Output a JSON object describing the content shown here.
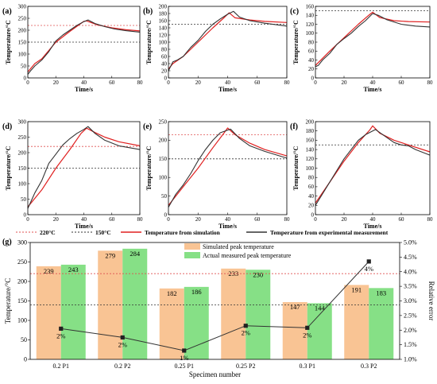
{
  "chart_data": [
    {
      "panel": "(a)",
      "type": "line",
      "xlabel": "Time/s",
      "ylabel": "Temperature/°C",
      "xlim": [
        0,
        80
      ],
      "ylim": [
        0,
        300
      ],
      "xticks": [
        "0",
        "20",
        "40",
        "60",
        "80"
      ],
      "yticks": [
        "0",
        "50",
        "100",
        "150",
        "200",
        "250",
        "300"
      ],
      "ref_lines": [
        220,
        150
      ],
      "series": [
        {
          "name": "Temperature from simulation",
          "color": "#e02020",
          "points": [
            [
              0,
              25
            ],
            [
              5,
              60
            ],
            [
              10,
              80
            ],
            [
              20,
              150
            ],
            [
              30,
              195
            ],
            [
              40,
              237
            ],
            [
              42,
              239
            ],
            [
              50,
              222
            ],
            [
              60,
              210
            ],
            [
              70,
              202
            ],
            [
              80,
              197
            ]
          ]
        },
        {
          "name": "Temperature from experimental measurement",
          "color": "#333333",
          "points": [
            [
              0,
              15
            ],
            [
              2,
              30
            ],
            [
              5,
              50
            ],
            [
              10,
              75
            ],
            [
              15,
              110
            ],
            [
              20,
              155
            ],
            [
              25,
              180
            ],
            [
              30,
              200
            ],
            [
              35,
              220
            ],
            [
              40,
              236
            ],
            [
              43,
              243
            ],
            [
              48,
              228
            ],
            [
              55,
              215
            ],
            [
              62,
              205
            ],
            [
              70,
              198
            ],
            [
              80,
              192
            ]
          ]
        }
      ]
    },
    {
      "panel": "(b)",
      "type": "line",
      "xlabel": "Time/s",
      "ylabel": "Temperature/°C",
      "xlim": [
        0,
        80
      ],
      "ylim": [
        0,
        200
      ],
      "xticks": [
        "0",
        "20",
        "40",
        "60",
        "80"
      ],
      "yticks": [
        "0",
        "20",
        "40",
        "60",
        "80",
        "100",
        "120",
        "140",
        "160",
        "180",
        "200"
      ],
      "ref_lines": [
        150
      ],
      "series": [
        {
          "name": "Temperature from simulation",
          "color": "#e02020",
          "points": [
            [
              0,
              25
            ],
            [
              3,
              40
            ],
            [
              10,
              60
            ],
            [
              20,
              100
            ],
            [
              30,
              140
            ],
            [
              38,
              170
            ],
            [
              41,
              182
            ],
            [
              45,
              168
            ],
            [
              55,
              162
            ],
            [
              65,
              158
            ],
            [
              80,
              155
            ]
          ]
        },
        {
          "name": "Temperature from experimental measurement",
          "color": "#333333",
          "points": [
            [
              0,
              20
            ],
            [
              3,
              45
            ],
            [
              6,
              50
            ],
            [
              10,
              60
            ],
            [
              15,
              85
            ],
            [
              20,
              105
            ],
            [
              25,
              130
            ],
            [
              30,
              150
            ],
            [
              35,
              165
            ],
            [
              40,
              178
            ],
            [
              44,
              186
            ],
            [
              48,
              170
            ],
            [
              55,
              160
            ],
            [
              65,
              153
            ],
            [
              80,
              145
            ]
          ]
        }
      ]
    },
    {
      "panel": "(c)",
      "type": "line",
      "xlabel": "Time/s",
      "ylabel": "Temperature/°C",
      "xlim": [
        0,
        80
      ],
      "ylim": [
        0,
        160
      ],
      "xticks": [
        "0",
        "20",
        "40",
        "60",
        "80"
      ],
      "yticks": [
        "0",
        "20",
        "40",
        "60",
        "80",
        "100",
        "120",
        "140",
        "160"
      ],
      "ref_lines": [
        150
      ],
      "series": [
        {
          "name": "Temperature from simulation",
          "color": "#e02020",
          "points": [
            [
              0,
              28
            ],
            [
              10,
              60
            ],
            [
              20,
              90
            ],
            [
              30,
              120
            ],
            [
              38,
              142
            ],
            [
              40,
              147
            ],
            [
              45,
              135
            ],
            [
              55,
              128
            ],
            [
              65,
              126
            ],
            [
              80,
              125
            ]
          ]
        },
        {
          "name": "Temperature from experimental measurement",
          "color": "#333333",
          "points": [
            [
              0,
              25
            ],
            [
              2,
              28
            ],
            [
              5,
              40
            ],
            [
              10,
              55
            ],
            [
              15,
              75
            ],
            [
              20,
              88
            ],
            [
              25,
              100
            ],
            [
              30,
              115
            ],
            [
              35,
              128
            ],
            [
              40,
              144
            ],
            [
              44,
              140
            ],
            [
              50,
              130
            ],
            [
              60,
              120
            ],
            [
              70,
              116
            ],
            [
              80,
              114
            ]
          ]
        }
      ]
    },
    {
      "panel": "(d)",
      "type": "line",
      "xlabel": "Time/s",
      "ylabel": "Temperature/°C",
      "xlim": [
        0,
        80
      ],
      "ylim": [
        0,
        300
      ],
      "xticks": [
        "0",
        "20",
        "40",
        "60",
        "80"
      ],
      "yticks": [
        "0",
        "50",
        "100",
        "150",
        "200",
        "250",
        "300"
      ],
      "ref_lines": [
        220,
        150
      ],
      "series": [
        {
          "name": "Temperature from simulation",
          "color": "#e02020",
          "points": [
            [
              0,
              25
            ],
            [
              10,
              80
            ],
            [
              20,
              150
            ],
            [
              30,
              210
            ],
            [
              38,
              262
            ],
            [
              42,
              279
            ],
            [
              48,
              265
            ],
            [
              55,
              250
            ],
            [
              65,
              235
            ],
            [
              80,
              222
            ]
          ]
        },
        {
          "name": "Temperature from experimental measurement",
          "color": "#333333",
          "points": [
            [
              0,
              20
            ],
            [
              3,
              50
            ],
            [
              5,
              70
            ],
            [
              10,
              110
            ],
            [
              15,
              165
            ],
            [
              20,
              195
            ],
            [
              25,
              225
            ],
            [
              30,
              245
            ],
            [
              35,
              262
            ],
            [
              40,
              275
            ],
            [
              43,
              284
            ],
            [
              48,
              262
            ],
            [
              55,
              240
            ],
            [
              65,
              222
            ],
            [
              80,
              210
            ]
          ]
        }
      ]
    },
    {
      "panel": "(e)",
      "type": "line",
      "xlabel": "Time/s",
      "ylabel": "Temperature/°C",
      "xlim": [
        0,
        80
      ],
      "ylim": [
        0,
        250
      ],
      "xticks": [
        "0",
        "20",
        "40",
        "60",
        "80"
      ],
      "yticks": [
        "0",
        "50",
        "100",
        "150",
        "200",
        "250"
      ],
      "ref_lines": [
        215,
        150
      ],
      "series": [
        {
          "name": "Temperature from simulation",
          "color": "#e02020",
          "points": [
            [
              0,
              25
            ],
            [
              10,
              75
            ],
            [
              20,
              125
            ],
            [
              30,
              180
            ],
            [
              38,
              222
            ],
            [
              40,
              233
            ],
            [
              45,
              215
            ],
            [
              55,
              192
            ],
            [
              65,
              175
            ],
            [
              80,
              158
            ]
          ]
        },
        {
          "name": "Temperature from experimental measurement",
          "color": "#333333",
          "points": [
            [
              0,
              20
            ],
            [
              5,
              55
            ],
            [
              10,
              80
            ],
            [
              15,
              110
            ],
            [
              20,
              145
            ],
            [
              25,
              175
            ],
            [
              30,
              200
            ],
            [
              35,
              220
            ],
            [
              42,
              230
            ],
            [
              48,
              205
            ],
            [
              55,
              185
            ],
            [
              65,
              170
            ],
            [
              80,
              152
            ]
          ]
        }
      ]
    },
    {
      "panel": "(f)",
      "type": "line",
      "xlabel": "Time/s",
      "ylabel": "Temperature/°C",
      "xlim": [
        0,
        80
      ],
      "ylim": [
        0,
        200
      ],
      "xticks": [
        "0",
        "20",
        "40",
        "60",
        "80"
      ],
      "yticks": [
        "0",
        "20",
        "40",
        "60",
        "80",
        "100",
        "120",
        "140",
        "160",
        "180",
        "200"
      ],
      "ref_lines": [
        150
      ],
      "series": [
        {
          "name": "Temperature from simulation",
          "color": "#e02020",
          "points": [
            [
              0,
              25
            ],
            [
              10,
              70
            ],
            [
              20,
              115
            ],
            [
              30,
              155
            ],
            [
              38,
              182
            ],
            [
              40,
              191
            ],
            [
              45,
              175
            ],
            [
              55,
              160
            ],
            [
              65,
              150
            ],
            [
              80,
              135
            ]
          ]
        },
        {
          "name": "Temperature from experimental measurement",
          "color": "#333333",
          "points": [
            [
              0,
              20
            ],
            [
              5,
              45
            ],
            [
              10,
              70
            ],
            [
              15,
              95
            ],
            [
              20,
              120
            ],
            [
              25,
              140
            ],
            [
              30,
              160
            ],
            [
              35,
              172
            ],
            [
              42,
              183
            ],
            [
              48,
              170
            ],
            [
              55,
              155
            ],
            [
              60,
              150
            ],
            [
              65,
              148
            ],
            [
              70,
              140
            ],
            [
              80,
              128
            ]
          ]
        }
      ]
    },
    {
      "panel": "(g)",
      "type": "bar",
      "xlabel": "Specimen number",
      "ylabel": "Temperature/°C",
      "y2label": "Relative error",
      "ylim": [
        0,
        300
      ],
      "y2lim": [
        1.0,
        5.0
      ],
      "yticks": [
        "0",
        "50",
        "100",
        "150",
        "200",
        "250",
        "300"
      ],
      "y2ticks": [
        "1.0%",
        "1.5%",
        "2.0%",
        "2.5%",
        "3.0%",
        "3.5%",
        "4.0%",
        "4.5%",
        "5.0%"
      ],
      "categories": [
        "0.2 P1",
        "0.2 P2",
        "0.25 P1",
        "0.25 P2",
        "0.3 P1",
        "0.3 P2"
      ],
      "ref_lines": [
        220,
        140
      ],
      "series": [
        {
          "name": "Simulated peak temperature",
          "color": "#f9c494",
          "values": [
            239,
            279,
            182,
            233,
            147,
            191
          ]
        },
        {
          "name": "Actual measured peak temperature",
          "color": "#86e086",
          "values": [
            243,
            284,
            186,
            230,
            144,
            183
          ]
        },
        {
          "name": "Relative error",
          "color": "#333333",
          "values": [
            2,
            2,
            1,
            2,
            2,
            4
          ],
          "plotted_percent": [
            2.05,
            1.75,
            1.3,
            2.15,
            2.08,
            4.35
          ],
          "labels": [
            "2%",
            "2%",
            "1%",
            "2%",
            "2%",
            "4%"
          ]
        }
      ]
    }
  ],
  "legend": {
    "ref220": "220°C",
    "ref150": "150°C",
    "sim": "Temperature from simulation",
    "exp": "Temperature from experimental measurement"
  },
  "colors": {
    "sim": "#e02020",
    "exp": "#333333",
    "ref220": "#e05050",
    "ref150": "#333333"
  }
}
